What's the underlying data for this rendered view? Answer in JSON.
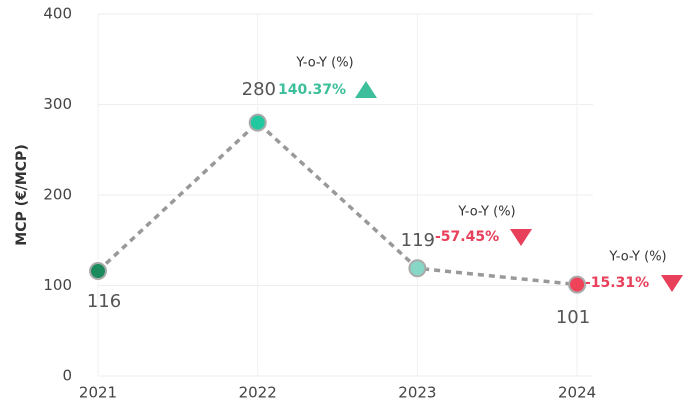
{
  "chart_data": {
    "type": "line",
    "y_label": "MCP (€/MCP)",
    "categories": [
      "2021",
      "2022",
      "2023",
      "2024"
    ],
    "series": [
      {
        "name": "MCP",
        "color": "#999999",
        "values": [
          116,
          280,
          119,
          101
        ],
        "point_colors": [
          "#1b8a5c",
          "#22c9a0",
          "#86d7c6",
          "#f0435a"
        ]
      }
    ],
    "yoy": {
      "name": "Y-o-Y (%)",
      "values": [
        null,
        140.37,
        -57.45,
        -15.31
      ],
      "value_labels": [
        null,
        "140.37%",
        "-57.45%",
        "-15.31%"
      ],
      "positive_color": "#3cbf9a",
      "negative_color": "#e8405a"
    },
    "ylim": [
      0,
      400
    ],
    "yticks": [
      0,
      100,
      200,
      300,
      400
    ],
    "grid": true
  }
}
